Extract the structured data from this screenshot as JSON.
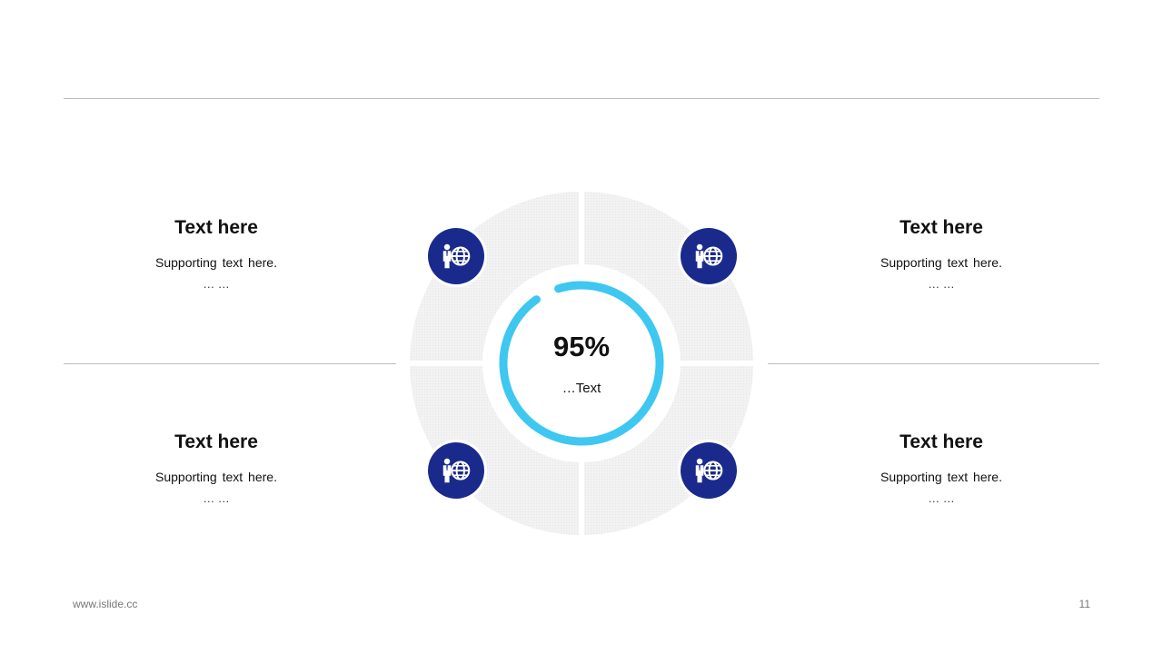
{
  "blocks": {
    "top_left": {
      "title": "Text here",
      "support": "Supporting text here.",
      "dots": "… …"
    },
    "top_right": {
      "title": "Text here",
      "support": "Supporting text here.",
      "dots": "… …"
    },
    "bottom_left": {
      "title": "Text here",
      "support": "Supporting text here.",
      "dots": "… …"
    },
    "bottom_right": {
      "title": "Text here",
      "support": "Supporting text here.",
      "dots": "… …"
    }
  },
  "center": {
    "value": "95%",
    "label": "…Text",
    "progress": 0.95
  },
  "icons": [
    "person-globe-icon",
    "person-globe-icon",
    "person-globe-icon",
    "person-globe-icon"
  ],
  "colors": {
    "accent_ring": "#3ec7f0",
    "icon_bg": "#1a2a8c",
    "sector_fill": "#efefef",
    "rule": "#bdbdbd"
  },
  "footer": {
    "website": "www.islide.cc",
    "page_number": "11"
  }
}
